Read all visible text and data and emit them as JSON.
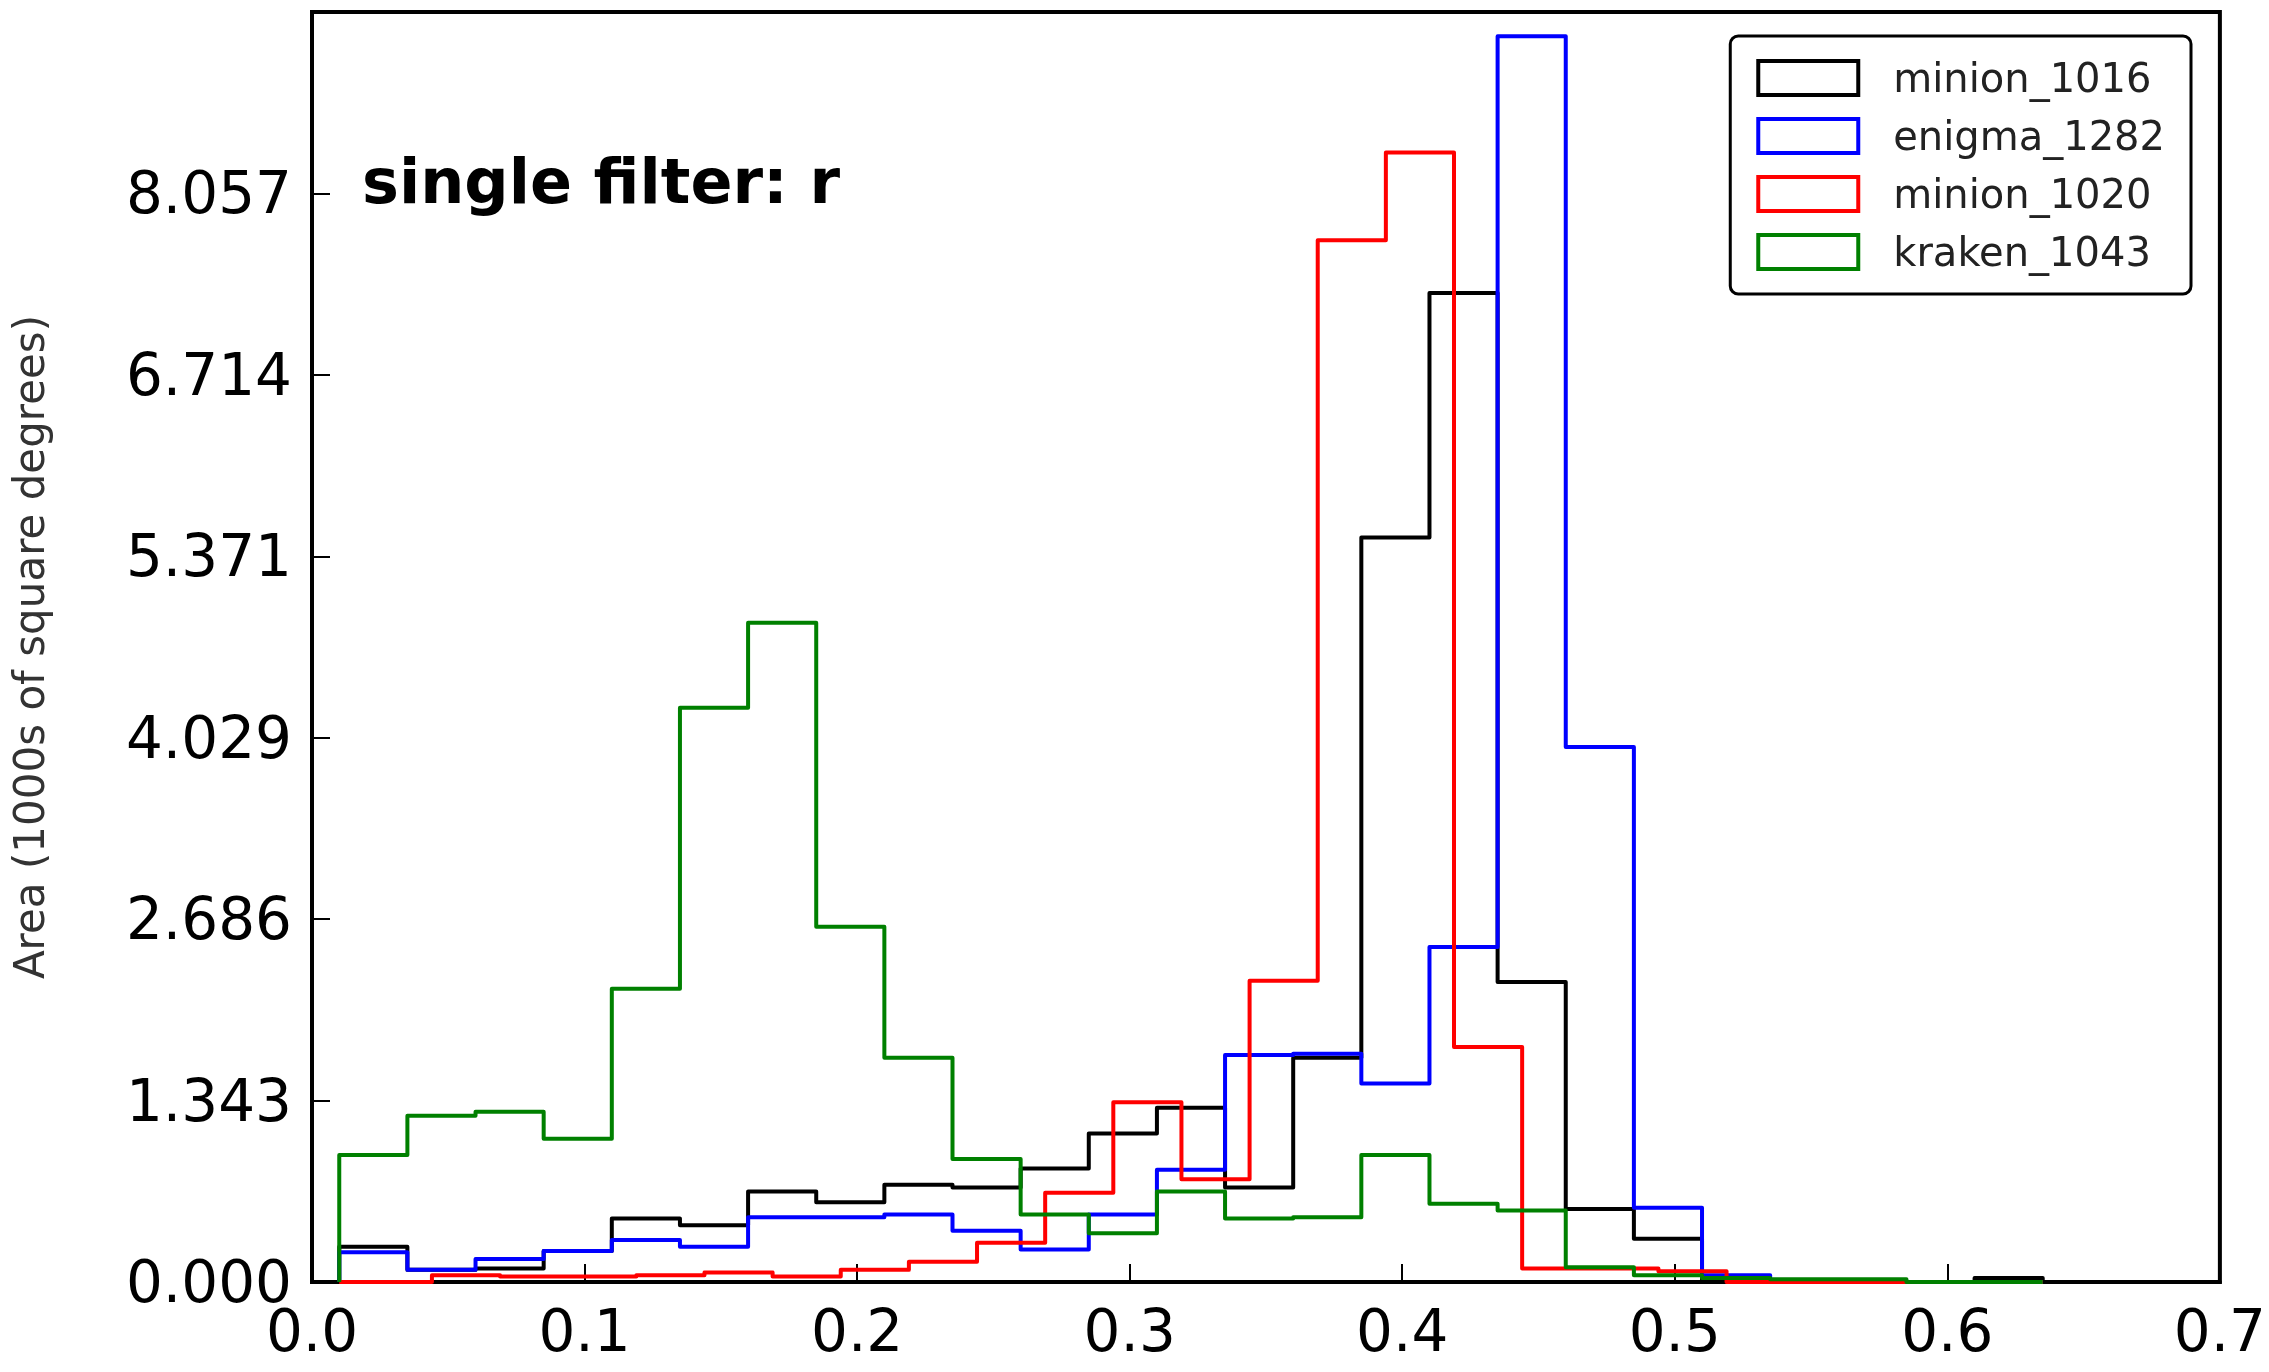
{
  "chart_data": {
    "type": "histogram",
    "ylabel": "Area (1000s of square degrees)",
    "annotations": [
      "single filter: r"
    ],
    "bins": [
      0.01,
      0.035,
      0.044,
      0.06,
      0.069,
      0.085,
      0.094,
      0.11,
      0.119,
      0.135,
      0.144,
      0.16,
      0.169,
      0.185,
      0.194,
      0.21,
      0.219,
      0.235,
      0.244,
      0.26,
      0.269,
      0.285,
      0.294,
      0.31,
      0.319,
      0.335,
      0.344,
      0.36,
      0.369,
      0.385,
      0.394,
      0.41,
      0.419,
      0.435,
      0.444,
      0.46,
      0.469,
      0.485,
      0.494,
      0.51,
      0.519,
      0.535,
      0.56,
      0.585,
      0.61,
      0.635
    ],
    "series": [
      {
        "name": "minion_1016",
        "color": "#000000",
        "values": [
          0.26,
          0.09,
          0.09,
          0.1,
          0.1,
          0.23,
          0.23,
          0.47,
          0.47,
          0.42,
          0.42,
          0.67,
          0.67,
          0.59,
          0.59,
          0.72,
          0.72,
          0.7,
          0.7,
          0.84,
          0.84,
          1.1,
          1.1,
          1.29,
          1.29,
          0.7,
          0.7,
          1.66,
          1.66,
          5.51,
          5.51,
          7.32,
          7.32,
          2.22,
          2.22,
          0.54,
          0.54,
          0.32,
          0.32,
          0,
          0,
          0,
          0,
          0,
          0.03
        ]
      },
      {
        "name": "enigma_1282",
        "color": "#0000ff",
        "values": [
          0.22,
          0.09,
          0.09,
          0.17,
          0.17,
          0.23,
          0.23,
          0.31,
          0.31,
          0.26,
          0.26,
          0.48,
          0.48,
          0.48,
          0.48,
          0.5,
          0.5,
          0.38,
          0.38,
          0.24,
          0.24,
          0.5,
          0.5,
          0.83,
          0.83,
          1.68,
          1.68,
          1.69,
          1.69,
          1.47,
          1.47,
          2.48,
          2.48,
          9.22,
          9.22,
          3.96,
          3.96,
          0.55,
          0.55,
          0.05,
          0.05,
          0.01,
          0.01,
          0,
          0
        ]
      },
      {
        "name": "minion_1020",
        "color": "#ff0000",
        "values": [
          0,
          0,
          0.05,
          0.05,
          0.04,
          0.04,
          0.04,
          0.04,
          0.05,
          0.05,
          0.07,
          0.07,
          0.04,
          0.04,
          0.09,
          0.09,
          0.15,
          0.15,
          0.29,
          0.29,
          0.66,
          0.66,
          1.33,
          1.33,
          0.76,
          0.76,
          2.23,
          2.23,
          7.71,
          7.71,
          8.36,
          8.36,
          1.74,
          1.74,
          0.1,
          0.1,
          0.1,
          0.1,
          0.08,
          0.08,
          0,
          0,
          0,
          0,
          0
        ]
      },
      {
        "name": "kraken_1043",
        "color": "#008000",
        "values": [
          0.94,
          1.23,
          1.23,
          1.26,
          1.26,
          1.06,
          1.06,
          2.17,
          2.17,
          4.25,
          4.25,
          4.88,
          4.88,
          2.63,
          2.63,
          1.66,
          1.66,
          0.91,
          0.91,
          0.5,
          0.5,
          0.36,
          0.36,
          0.67,
          0.67,
          0.47,
          0.47,
          0.48,
          0.48,
          0.94,
          0.94,
          0.58,
          0.58,
          0.53,
          0.53,
          0.11,
          0.11,
          0.05,
          0.05,
          0.03,
          0.03,
          0.02,
          0.02,
          0,
          0
        ]
      }
    ],
    "xlim": [
      0,
      0.7
    ],
    "xticks": [
      {
        "value": 0,
        "label": "0.0"
      },
      0.1,
      0.2,
      0.3,
      0.4,
      0.5,
      0.6,
      0.7
    ],
    "ylim": [
      0,
      9.4
    ],
    "yticks": [
      {
        "value": 0,
        "label": "0.000"
      },
      1.343,
      2.686,
      4.029,
      5.371,
      6.714,
      8.057
    ],
    "grid": false,
    "legend": "top right"
  }
}
